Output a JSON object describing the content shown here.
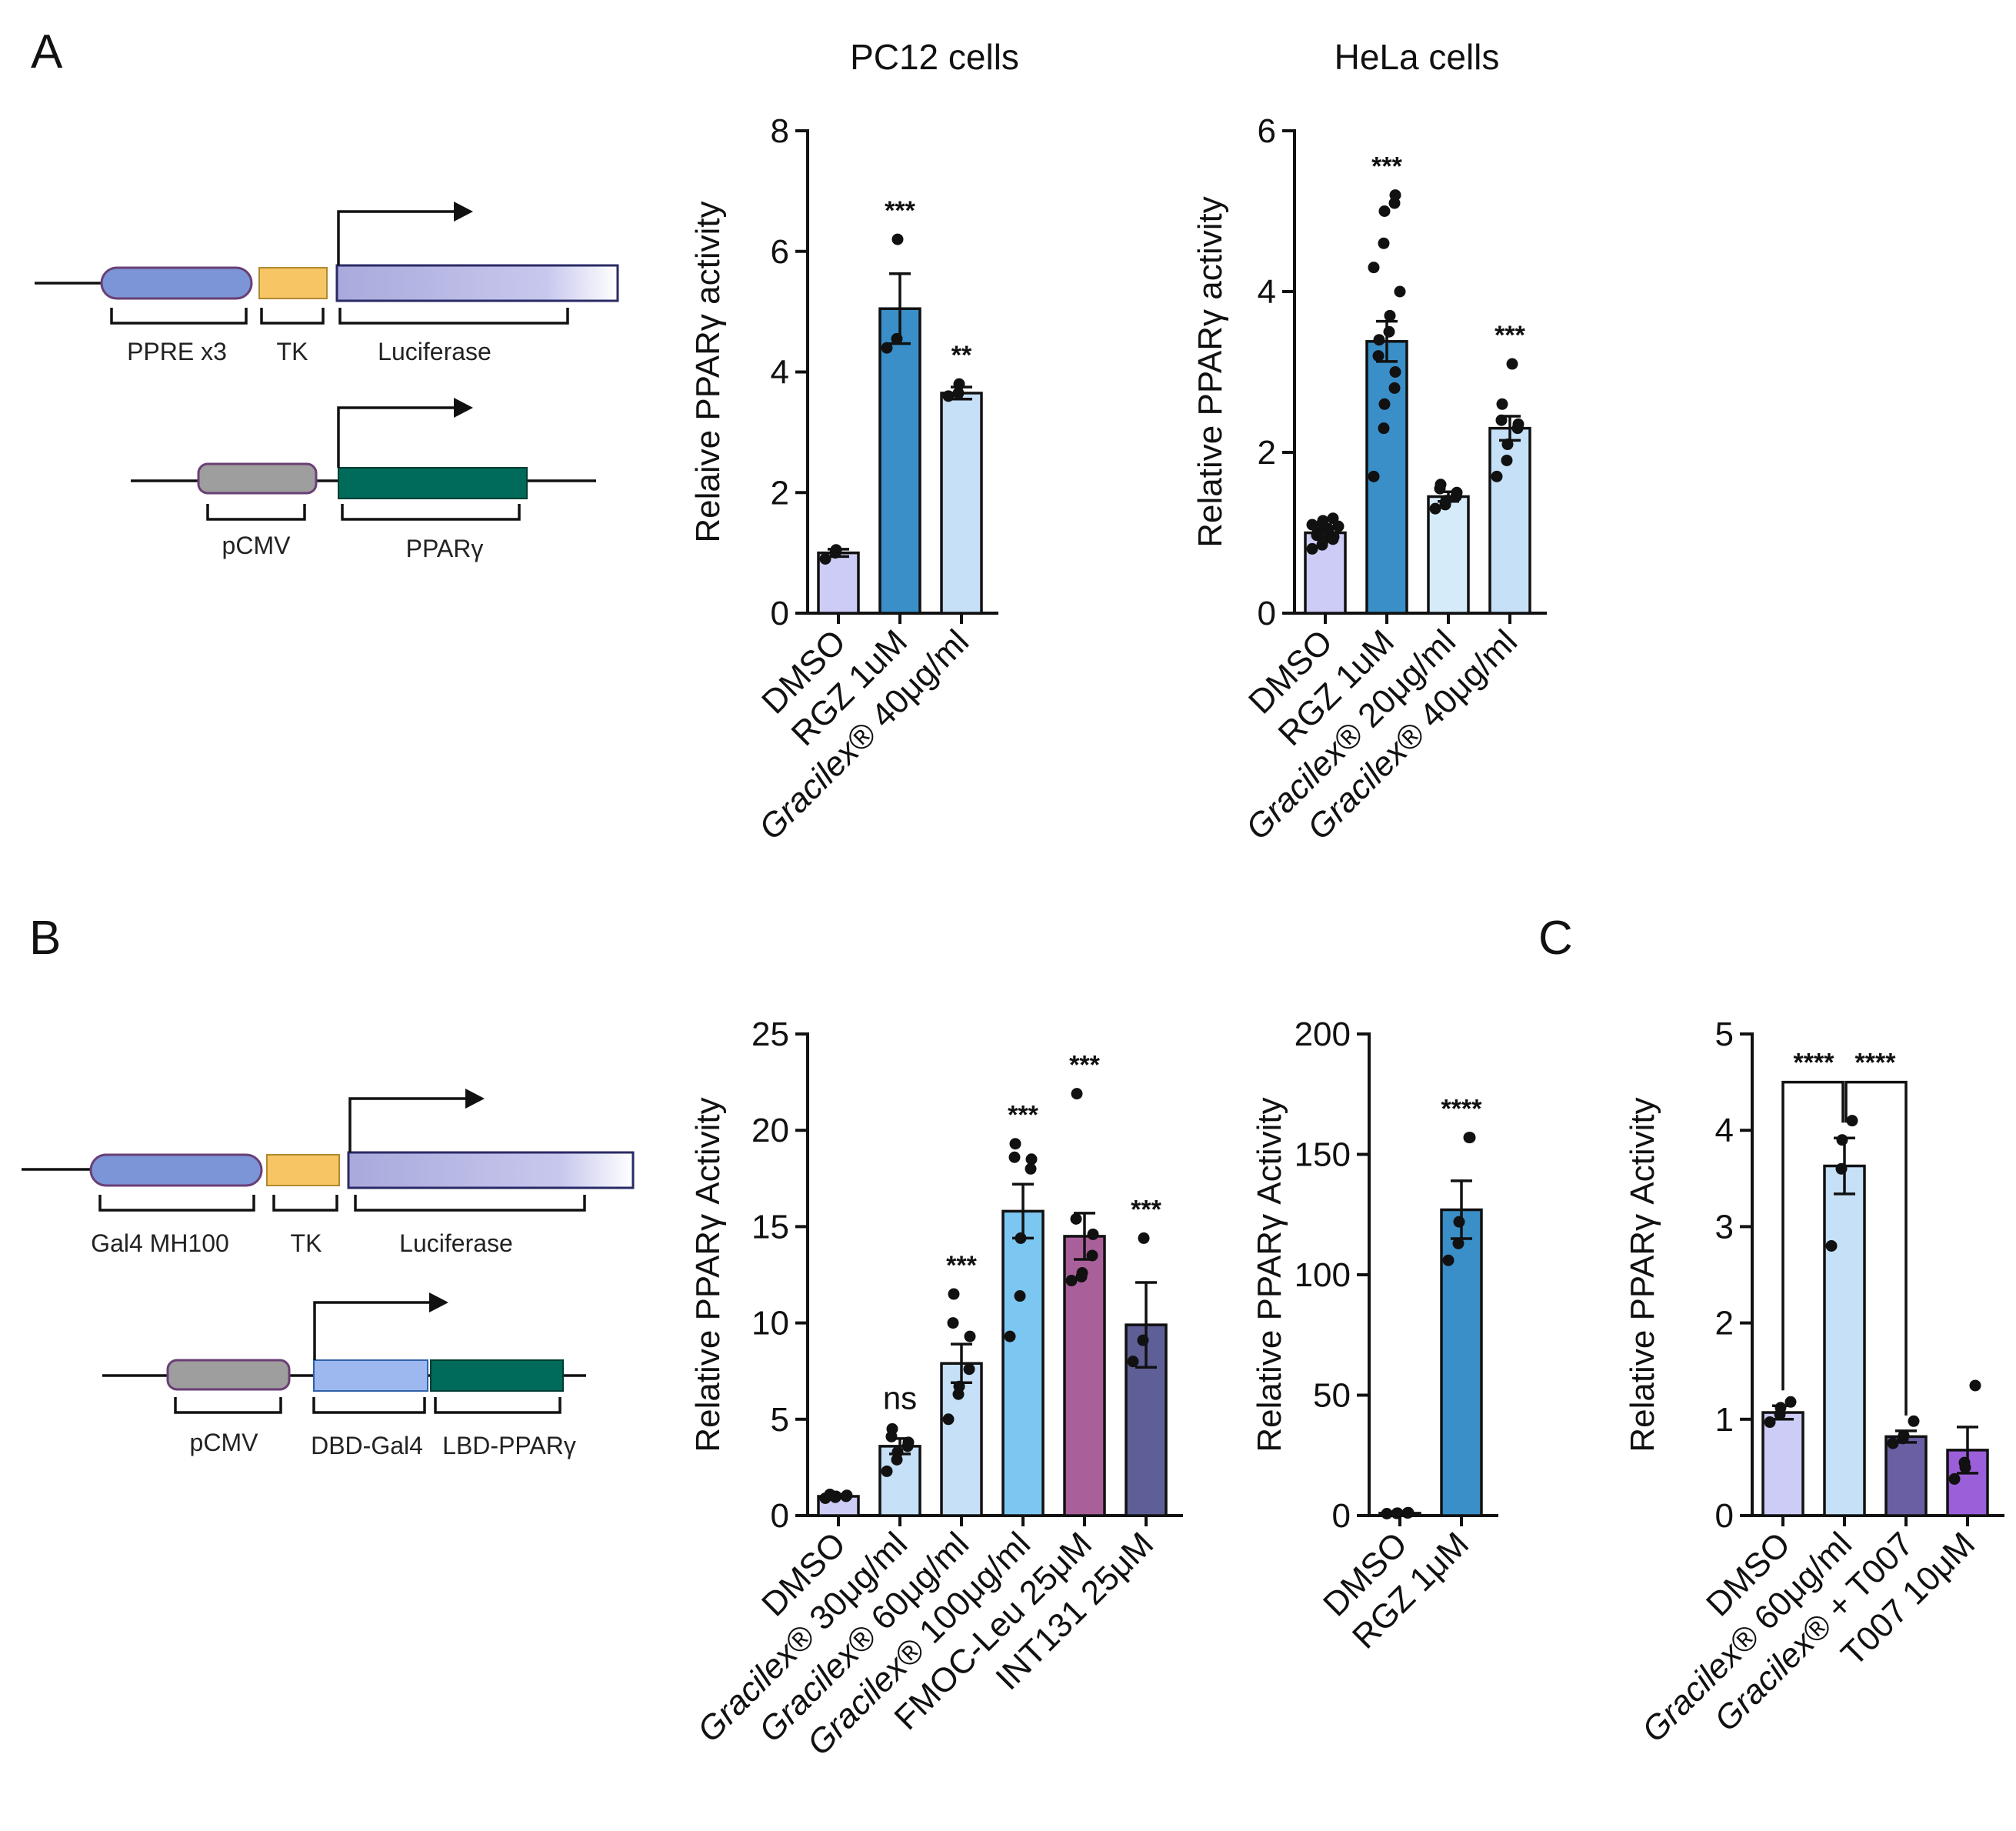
{
  "panels": {
    "A": "A",
    "B": "B",
    "C": "C"
  },
  "colors": {
    "lavender": "#ccccf6",
    "blue_dark": "#3a8fc8",
    "blue_light": "#c5e0f7",
    "blue_pale": "#d6ebfa",
    "sky": "#7cc7f2",
    "mauve": "#a9609a",
    "slate": "#5f5f97",
    "purple": "#9b5fd9",
    "navy_violet": "#6a5fa3"
  },
  "schematic": {
    "A_labels": [
      "PPRE x3",
      "TK",
      "Luciferase",
      "pCMV",
      "PPARγ"
    ],
    "B_labels": [
      "Gal4 MH100",
      "TK",
      "Luciferase",
      "pCMV",
      "DBD-Gal4",
      "LBD-PPARγ"
    ]
  },
  "chart_data": [
    {
      "id": "pc12",
      "type": "bar",
      "title": "PC12 cells",
      "ylabel": "Relaive PPARγ activity",
      "ylim": [
        0,
        8
      ],
      "yticks": [
        "0",
        "2",
        "4",
        "6",
        "8"
      ],
      "categories": [
        "DMSO",
        "RGZ 1uM",
        "Gracilex® 40μg/ml"
      ],
      "italic_prefix": [
        "",
        "",
        "Gracilex"
      ],
      "values": [
        1.0,
        5.05,
        3.65
      ],
      "errors": [
        0.06,
        0.58,
        0.1
      ],
      "points": [
        [
          0.9,
          1.0,
          1.05
        ],
        [
          4.4,
          4.55,
          6.2
        ],
        [
          3.6,
          3.65,
          3.8
        ]
      ],
      "significance": [
        "",
        "***",
        "**"
      ],
      "colors": [
        "#ccccf6",
        "#3a8fc8",
        "#c5e0f7"
      ]
    },
    {
      "id": "hela",
      "type": "bar",
      "title": "HeLa cells",
      "ylabel": "Relative PPARγ activity",
      "ylim": [
        0,
        6
      ],
      "yticks": [
        "0",
        "2",
        "4",
        "6"
      ],
      "categories": [
        "DMSO",
        "RGZ 1uM",
        "Gracilex® 20μg/ml",
        "Gracilex® 40μg/ml"
      ],
      "italic_prefix": [
        "",
        "",
        "Gracilex",
        "Gracilex"
      ],
      "values": [
        1.0,
        3.38,
        1.45,
        2.3
      ],
      "errors": [
        0.05,
        0.25,
        0.06,
        0.15
      ],
      "points": [
        [
          0.8,
          0.85,
          0.9,
          0.92,
          0.95,
          0.97,
          1.0,
          1.02,
          1.05,
          1.08,
          1.1,
          1.12,
          1.15,
          1.18
        ],
        [
          1.7,
          2.3,
          2.6,
          2.8,
          3.0,
          3.2,
          3.4,
          3.5,
          3.7,
          4.0,
          4.3,
          4.6,
          5.0,
          5.1,
          5.2
        ],
        [
          1.3,
          1.35,
          1.4,
          1.45,
          1.5,
          1.55,
          1.6
        ],
        [
          1.7,
          1.9,
          2.1,
          2.3,
          2.35,
          2.4,
          2.6,
          3.1
        ]
      ],
      "significance": [
        "",
        "***",
        "",
        "***"
      ],
      "colors": [
        "#ccccf6",
        "#3a8fc8",
        "#d6ebfa",
        "#c5e0f7"
      ]
    },
    {
      "id": "gal4",
      "type": "bar",
      "title": "",
      "ylabel": "Relative PPARγ Activity",
      "ylim": [
        0,
        25
      ],
      "yticks": [
        "0",
        "5",
        "10",
        "15",
        "20",
        "25"
      ],
      "categories": [
        "DMSO",
        "Gracilex® 30μg/ml",
        "Gracilex® 60μg/ml",
        "Gracilex® 100μg/ml",
        "FMOC-Leu 25μM",
        "INT131 25μM"
      ],
      "italic_prefix": [
        "",
        "Gracilex",
        "Gracilex",
        "Gracilex",
        "",
        ""
      ],
      "values": [
        1.0,
        3.6,
        7.9,
        15.8,
        14.5,
        9.9
      ],
      "errors": [
        0.08,
        0.4,
        1.0,
        1.4,
        1.2,
        2.2
      ],
      "points": [
        [
          0.9,
          0.95,
          1.0,
          1.0,
          1.05,
          1.1
        ],
        [
          2.3,
          2.9,
          3.3,
          3.6,
          3.8,
          4.1,
          4.5
        ],
        [
          5.0,
          6.3,
          6.7,
          7.6,
          9.3,
          10.0,
          11.5
        ],
        [
          9.3,
          11.4,
          14.4,
          18.0,
          18.5,
          18.6,
          19.3
        ],
        [
          12.2,
          12.4,
          12.6,
          13.5,
          14.6,
          15.4,
          21.9
        ],
        [
          8.0,
          9.1,
          14.4
        ]
      ],
      "significance": [
        "",
        "ns",
        "***",
        "***",
        "***",
        "***"
      ],
      "colors": [
        "#ccccf6",
        "#c5e0f7",
        "#c5e0f7",
        "#7cc7f2",
        "#a9609a",
        "#5f5f97"
      ]
    },
    {
      "id": "rgz",
      "type": "bar",
      "title": "",
      "ylabel": "Relative PPARγ Activity",
      "ylim": [
        0,
        200
      ],
      "yticks": [
        "0",
        "50",
        "100",
        "150",
        "200"
      ],
      "categories": [
        "DMSO",
        "RGZ 1μM"
      ],
      "italic_prefix": [
        "",
        ""
      ],
      "values": [
        1.0,
        127
      ],
      "errors": [
        0.3,
        12
      ],
      "points": [
        [
          0.8,
          0.9,
          1.0,
          1.1,
          1.2
        ],
        [
          106,
          113,
          122,
          157,
          157
        ]
      ],
      "significance": [
        "",
        "****"
      ],
      "colors": [
        "#ccccf6",
        "#3a8fc8"
      ]
    },
    {
      "id": "t007",
      "type": "bar",
      "title": "",
      "ylabel": "Relative PPARγ Activity",
      "ylim": [
        0,
        5
      ],
      "yticks": [
        "0",
        "1",
        "2",
        "3",
        "4",
        "5"
      ],
      "categories": [
        "DMSO",
        "Gracilex® 60μg/ml",
        "Gracilex® + T007",
        "T007 10μM"
      ],
      "italic_prefix": [
        "",
        "Gracilex",
        "Gracilex",
        ""
      ],
      "values": [
        1.07,
        3.63,
        0.82,
        0.68
      ],
      "errors": [
        0.07,
        0.29,
        0.06,
        0.24
      ],
      "points": [
        [
          0.97,
          1.05,
          1.12,
          1.18
        ],
        [
          2.8,
          3.6,
          3.9,
          4.1
        ],
        [
          0.75,
          0.8,
          0.83,
          0.98
        ],
        [
          0.38,
          0.55,
          0.5,
          1.35
        ]
      ],
      "significance": [
        "****",
        "****"
      ],
      "colors": [
        "#ccccf6",
        "#c5e0f7",
        "#6a5fa3",
        "#9b5fd9"
      ]
    }
  ]
}
